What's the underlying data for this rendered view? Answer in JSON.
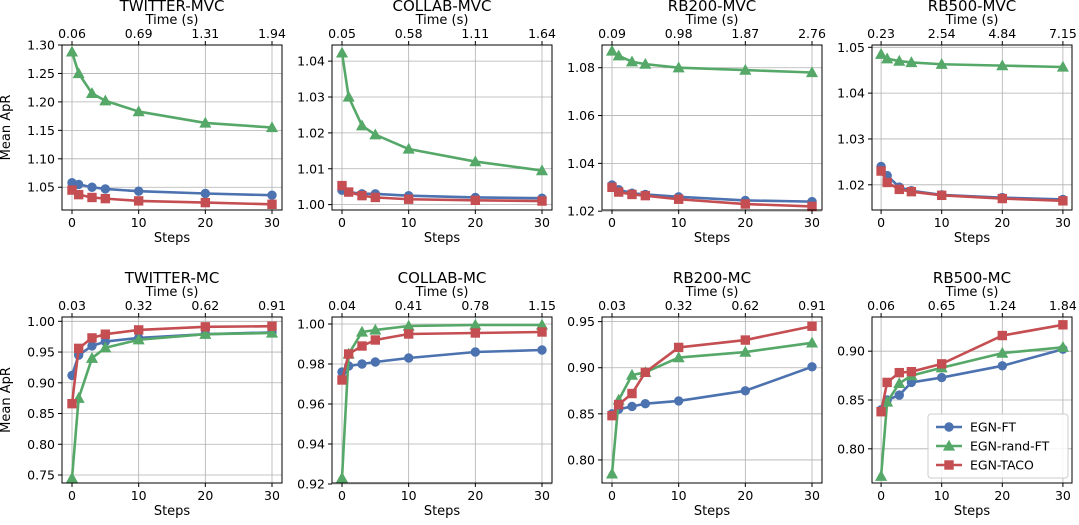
{
  "figure": {
    "ylabel": "Mean ApR",
    "xlabel": "Steps",
    "top_xlabel": "Time (s)"
  },
  "legend": {
    "position": "lower-right of RB500-MC",
    "entries": [
      {
        "label": "EGN-FT",
        "color": "#4c72b0",
        "marker": "circle"
      },
      {
        "label": "EGN-rand-FT",
        "color": "#55a868",
        "marker": "triangle"
      },
      {
        "label": "EGN-TACO",
        "color": "#c44e52",
        "marker": "square"
      }
    ]
  },
  "chart_data": [
    {
      "type": "line",
      "title": "TWITTER-MVC",
      "xlabel": "Steps",
      "ylabel": "Mean ApR",
      "x": [
        0,
        1,
        3,
        5,
        10,
        20,
        30
      ],
      "xlim": [
        -1.5,
        31.5
      ],
      "xticks": [
        "0",
        "10",
        "20",
        "30"
      ],
      "ylim": [
        1.01,
        1.3
      ],
      "yticks": [
        "1.05",
        "1.10",
        "1.15",
        "1.20",
        "1.25",
        "1.30"
      ],
      "ytick_values": [
        1.05,
        1.1,
        1.15,
        1.2,
        1.25,
        1.3
      ],
      "top_axis": {
        "label": "Time (s)",
        "ticks": [
          "0.06",
          "0.69",
          "1.31",
          "1.94"
        ]
      },
      "series": [
        {
          "name": "EGN-FT",
          "values": [
            1.058,
            1.055,
            1.05,
            1.047,
            1.043,
            1.039,
            1.036
          ]
        },
        {
          "name": "EGN-rand-FT",
          "values": [
            1.288,
            1.25,
            1.215,
            1.202,
            1.183,
            1.163,
            1.155
          ]
        },
        {
          "name": "EGN-TACO",
          "values": [
            1.045,
            1.037,
            1.032,
            1.03,
            1.026,
            1.023,
            1.02
          ]
        }
      ]
    },
    {
      "type": "line",
      "title": "COLLAB-MVC",
      "xlabel": "Steps",
      "ylabel": "",
      "x": [
        0,
        1,
        3,
        5,
        10,
        20,
        30
      ],
      "xlim": [
        -1.5,
        31.5
      ],
      "xticks": [
        "0",
        "10",
        "20",
        "30"
      ],
      "ylim": [
        0.9985,
        1.0445
      ],
      "yticks": [
        "1.00",
        "1.01",
        "1.02",
        "1.03",
        "1.04"
      ],
      "ytick_values": [
        1.0,
        1.01,
        1.02,
        1.03,
        1.04
      ],
      "top_axis": {
        "label": "Time (s)",
        "ticks": [
          "0.05",
          "0.58",
          "1.11",
          "1.64"
        ]
      },
      "series": [
        {
          "name": "EGN-FT",
          "values": [
            1.004,
            1.0035,
            1.003,
            1.003,
            1.0025,
            1.002,
            1.0018
          ]
        },
        {
          "name": "EGN-rand-FT",
          "values": [
            1.0423,
            1.03,
            1.022,
            1.0195,
            1.0155,
            1.012,
            1.0095
          ]
        },
        {
          "name": "EGN-TACO",
          "values": [
            1.0053,
            1.0035,
            1.0025,
            1.002,
            1.0015,
            1.0012,
            1.001
          ]
        }
      ]
    },
    {
      "type": "line",
      "title": "RB200-MVC",
      "xlabel": "Steps",
      "ylabel": "",
      "x": [
        0,
        1,
        3,
        5,
        10,
        20,
        30
      ],
      "xlim": [
        -1.5,
        31.5
      ],
      "xticks": [
        "0",
        "10",
        "20",
        "30"
      ],
      "ylim": [
        1.0205,
        1.0895
      ],
      "yticks": [
        "1.02",
        "1.04",
        "1.06",
        "1.08"
      ],
      "ytick_values": [
        1.02,
        1.04,
        1.06,
        1.08
      ],
      "top_axis": {
        "label": "Time (s)",
        "ticks": [
          "0.09",
          "0.98",
          "1.87",
          "2.76"
        ]
      },
      "series": [
        {
          "name": "EGN-FT",
          "values": [
            1.031,
            1.029,
            1.0275,
            1.027,
            1.026,
            1.0245,
            1.024
          ]
        },
        {
          "name": "EGN-rand-FT",
          "values": [
            1.087,
            1.085,
            1.0825,
            1.0815,
            1.08,
            1.079,
            1.078
          ]
        },
        {
          "name": "EGN-TACO",
          "values": [
            1.03,
            1.028,
            1.027,
            1.0265,
            1.025,
            1.023,
            1.022
          ]
        }
      ]
    },
    {
      "type": "line",
      "title": "RB500-MVC",
      "xlabel": "Steps",
      "ylabel": "",
      "x": [
        0,
        1,
        3,
        5,
        10,
        20,
        30
      ],
      "xlim": [
        -1.5,
        31.5
      ],
      "xticks": [
        "0",
        "10",
        "20",
        "30"
      ],
      "ylim": [
        1.0145,
        1.0505
      ],
      "yticks": [
        "1.02",
        "1.03",
        "1.04",
        "1.05"
      ],
      "ytick_values": [
        1.02,
        1.03,
        1.04,
        1.05
      ],
      "top_axis": {
        "label": "Time (s)",
        "ticks": [
          "0.23",
          "2.54",
          "4.84",
          "7.15"
        ]
      },
      "series": [
        {
          "name": "EGN-FT",
          "values": [
            1.024,
            1.022,
            1.0195,
            1.0187,
            1.0178,
            1.0172,
            1.0168
          ]
        },
        {
          "name": "EGN-rand-FT",
          "values": [
            1.0485,
            1.0475,
            1.047,
            1.0467,
            1.0463,
            1.046,
            1.0457
          ]
        },
        {
          "name": "EGN-TACO",
          "values": [
            1.023,
            1.0205,
            1.019,
            1.0185,
            1.0177,
            1.017,
            1.0165
          ]
        }
      ]
    },
    {
      "type": "line",
      "title": "TWITTER-MC",
      "xlabel": "Steps",
      "ylabel": "Mean ApR",
      "x": [
        0,
        1,
        3,
        5,
        10,
        20,
        30
      ],
      "xlim": [
        -1.5,
        31.5
      ],
      "xticks": [
        "0",
        "10",
        "20",
        "30"
      ],
      "ylim": [
        0.737,
        1.007
      ],
      "yticks": [
        "0.75",
        "0.80",
        "0.85",
        "0.90",
        "0.95",
        "1.00"
      ],
      "ytick_values": [
        0.75,
        0.8,
        0.85,
        0.9,
        0.95,
        1.0
      ],
      "top_axis": {
        "label": "Time (s)",
        "ticks": [
          "0.03",
          "0.32",
          "0.62",
          "0.91"
        ]
      },
      "series": [
        {
          "name": "EGN-FT",
          "values": [
            0.912,
            0.945,
            0.96,
            0.967,
            0.973,
            0.979,
            0.982
          ]
        },
        {
          "name": "EGN-rand-FT",
          "values": [
            0.745,
            0.875,
            0.94,
            0.957,
            0.97,
            0.979,
            0.981
          ]
        },
        {
          "name": "EGN-TACO",
          "values": [
            0.866,
            0.956,
            0.973,
            0.979,
            0.986,
            0.991,
            0.992
          ]
        }
      ]
    },
    {
      "type": "line",
      "title": "COLLAB-MC",
      "xlabel": "Steps",
      "ylabel": "",
      "x": [
        0,
        1,
        3,
        5,
        10,
        20,
        30
      ],
      "xlim": [
        -1.5,
        31.5
      ],
      "xticks": [
        "0",
        "10",
        "20",
        "30"
      ],
      "ylim": [
        0.9205,
        1.0035
      ],
      "yticks": [
        "0.92",
        "0.94",
        "0.96",
        "0.98",
        "1.00"
      ],
      "ytick_values": [
        0.92,
        0.94,
        0.96,
        0.98,
        1.0
      ],
      "top_axis": {
        "label": "Time (s)",
        "ticks": [
          "0.04",
          "0.41",
          "0.78",
          "1.15"
        ]
      },
      "series": [
        {
          "name": "EGN-FT",
          "values": [
            0.976,
            0.979,
            0.98,
            0.981,
            0.983,
            0.986,
            0.987
          ]
        },
        {
          "name": "EGN-rand-FT",
          "values": [
            0.923,
            0.985,
            0.996,
            0.997,
            0.999,
            0.9995,
            0.9995
          ]
        },
        {
          "name": "EGN-TACO",
          "values": [
            0.972,
            0.985,
            0.989,
            0.992,
            0.995,
            0.9955,
            0.996
          ]
        }
      ]
    },
    {
      "type": "line",
      "title": "RB200-MC",
      "xlabel": "Steps",
      "ylabel": "",
      "x": [
        0,
        1,
        3,
        5,
        10,
        20,
        30
      ],
      "xlim": [
        -1.5,
        31.5
      ],
      "xticks": [
        "0",
        "10",
        "20",
        "30"
      ],
      "ylim": [
        0.775,
        0.955
      ],
      "yticks": [
        "0.80",
        "0.85",
        "0.90",
        "0.95"
      ],
      "ytick_values": [
        0.8,
        0.85,
        0.9,
        0.95
      ],
      "top_axis": {
        "label": "Time (s)",
        "ticks": [
          "0.03",
          "0.32",
          "0.62",
          "0.91"
        ]
      },
      "series": [
        {
          "name": "EGN-FT",
          "values": [
            0.85,
            0.855,
            0.858,
            0.861,
            0.864,
            0.875,
            0.901
          ]
        },
        {
          "name": "EGN-rand-FT",
          "values": [
            0.785,
            0.865,
            0.892,
            0.895,
            0.911,
            0.917,
            0.927
          ]
        },
        {
          "name": "EGN-TACO",
          "values": [
            0.848,
            0.86,
            0.872,
            0.895,
            0.922,
            0.93,
            0.945
          ]
        }
      ]
    },
    {
      "type": "line",
      "title": "RB500-MC",
      "xlabel": "Steps",
      "ylabel": "",
      "x": [
        0,
        1,
        3,
        5,
        10,
        20,
        30
      ],
      "xlim": [
        -1.5,
        31.5
      ],
      "xticks": [
        "0",
        "10",
        "20",
        "30"
      ],
      "ylim": [
        0.765,
        0.935
      ],
      "yticks": [
        "0.80",
        "0.85",
        "0.90"
      ],
      "ytick_values": [
        0.8,
        0.85,
        0.9
      ],
      "top_axis": {
        "label": "Time (s)",
        "ticks": [
          "0.06",
          "0.65",
          "1.24",
          "1.84"
        ]
      },
      "series": [
        {
          "name": "EGN-FT",
          "values": [
            0.84,
            0.85,
            0.855,
            0.868,
            0.873,
            0.885,
            0.902
          ]
        },
        {
          "name": "EGN-rand-FT",
          "values": [
            0.772,
            0.848,
            0.867,
            0.875,
            0.883,
            0.898,
            0.904
          ]
        },
        {
          "name": "EGN-TACO",
          "values": [
            0.838,
            0.868,
            0.878,
            0.879,
            0.887,
            0.916,
            0.927
          ]
        }
      ]
    }
  ]
}
